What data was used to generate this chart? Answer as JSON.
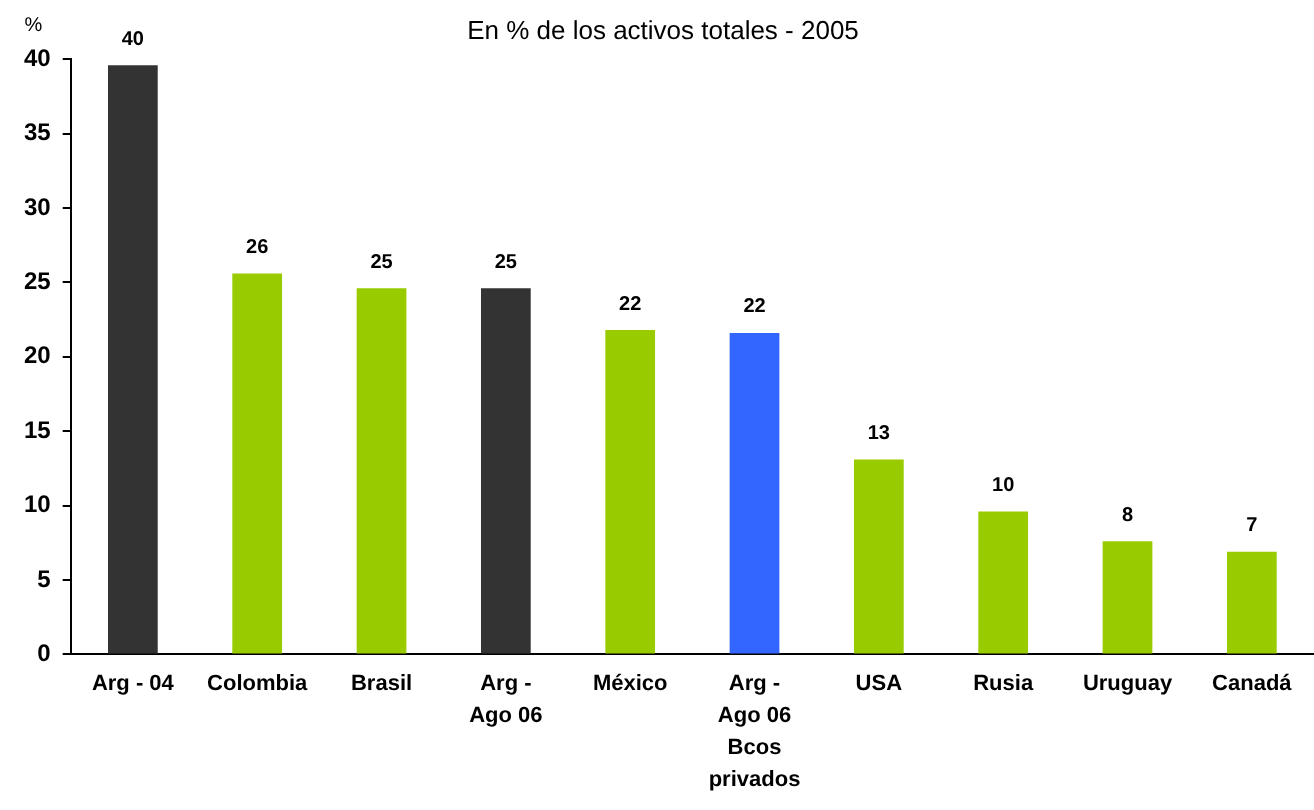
{
  "chart_data": {
    "type": "bar",
    "subtitle": "En % de los activos totales - 2005",
    "ylabel": "%",
    "categories": [
      "Arg - 04",
      "Colombia",
      "Brasil",
      "Arg - Ago 06",
      "México",
      "Arg - Ago 06 Bcos privados",
      "USA",
      "Rusia",
      "Uruguay",
      "Canadá"
    ],
    "values": [
      39.6,
      25.6,
      24.6,
      24.6,
      21.8,
      21.6,
      13.1,
      9.6,
      7.6,
      6.9
    ],
    "colors": [
      "#333333",
      "#99cc00",
      "#99cc00",
      "#333333",
      "#99cc00",
      "#3366ff",
      "#99cc00",
      "#99cc00",
      "#99cc00",
      "#99cc00"
    ],
    "value_labels": [
      "40",
      "26",
      "25",
      "25",
      "22",
      "22",
      "13",
      "10",
      "8",
      "7"
    ],
    "ylim": [
      0,
      40
    ],
    "yticks": [
      0,
      5,
      10,
      15,
      20,
      25,
      30,
      35,
      40
    ]
  }
}
